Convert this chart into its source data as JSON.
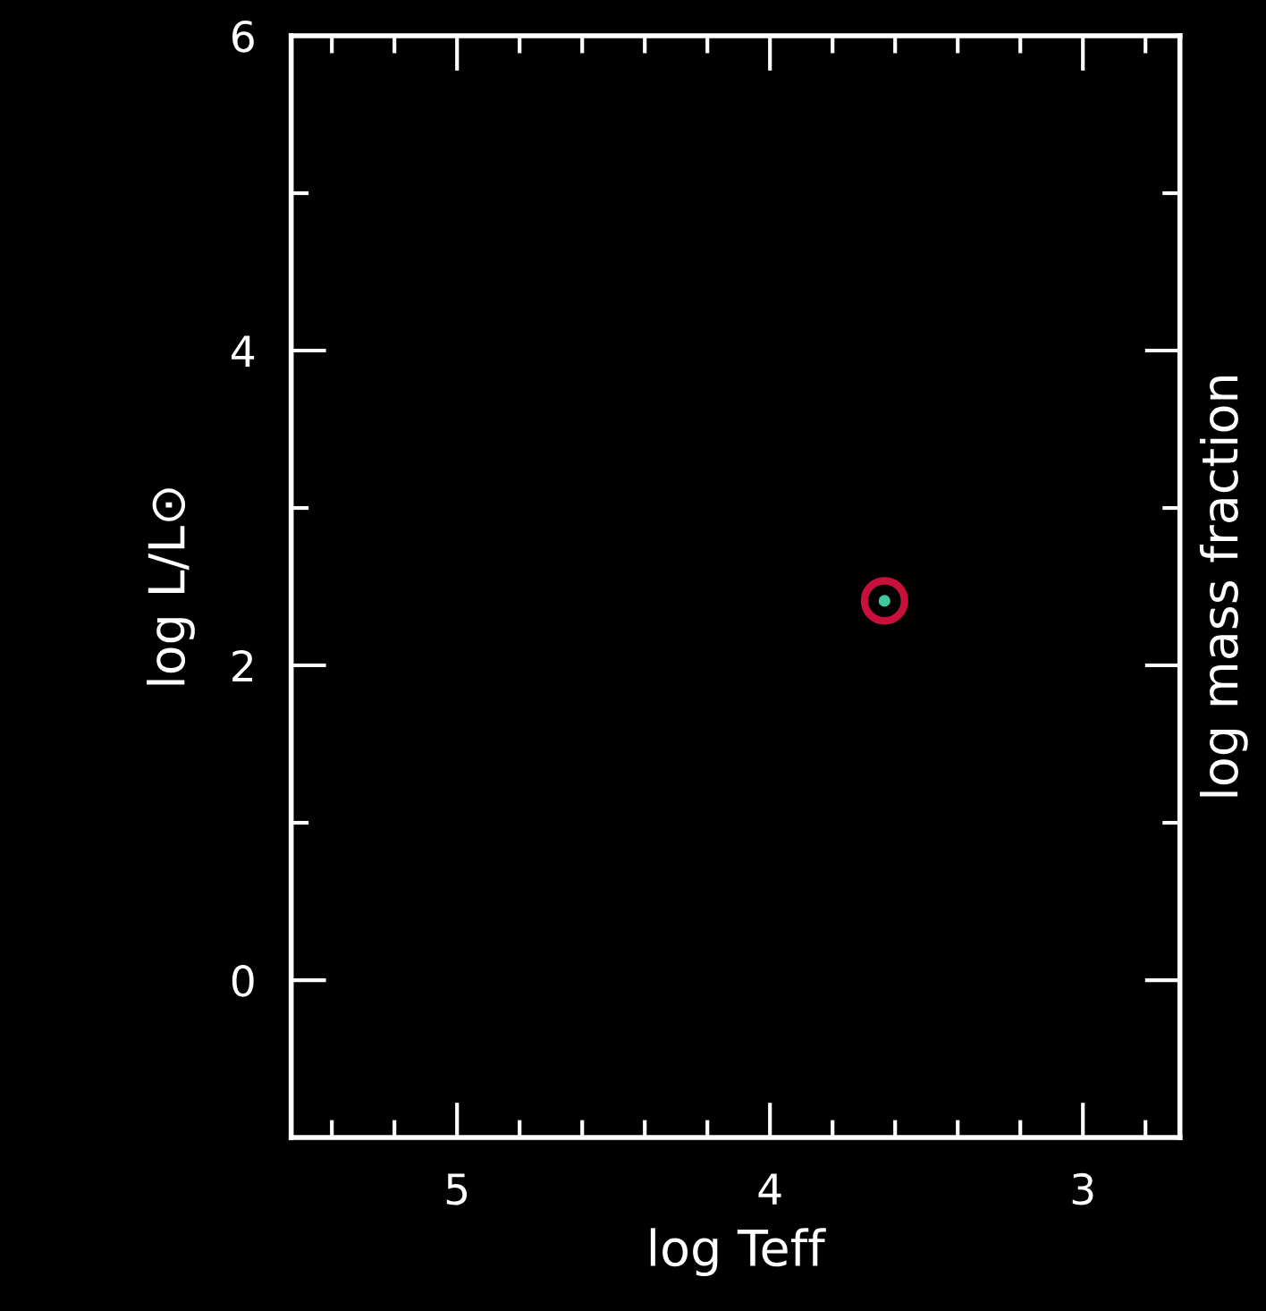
{
  "chart_data": {
    "type": "scatter",
    "xlabel": "log Teff",
    "ylabel": "log L/L⊙",
    "y2label": "log mass fraction",
    "x": [
      3.634
    ],
    "xlim": [
      5.53,
      2.69
    ],
    "xticks": [
      {
        "value": 5.4,
        "label": null
      },
      {
        "value": 5.2,
        "label": null
      },
      5,
      {
        "value": 4.8,
        "label": null
      },
      {
        "value": 4.6,
        "label": null
      },
      {
        "value": 4.4,
        "label": null
      },
      {
        "value": 4.2,
        "label": null
      },
      4,
      {
        "value": 3.8,
        "label": null
      },
      {
        "value": 3.6,
        "label": null
      },
      {
        "value": 3.4,
        "label": null
      },
      {
        "value": 3.2,
        "label": null
      },
      3,
      {
        "value": 2.8,
        "label": null
      }
    ],
    "ylim": [
      -1,
      6
    ],
    "yticks": [
      0,
      {
        "value": 1,
        "label": null
      },
      2,
      {
        "value": 3,
        "label": null
      },
      4,
      {
        "value": 5,
        "label": null
      },
      6
    ],
    "series": [
      {
        "color": "#c8103c",
        "values": [
          2.41
        ],
        "marker": "circle"
      },
      {
        "color": "#40c8a0",
        "values": [
          2.41
        ],
        "marker": "circle"
      }
    ],
    "grid": false,
    "legend": false
  }
}
